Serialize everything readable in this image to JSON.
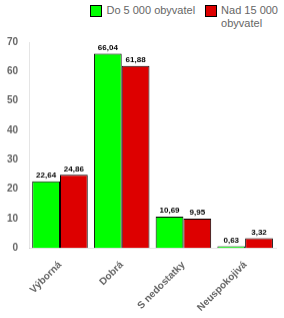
{
  "chart_data": {
    "type": "bar",
    "categories": [
      "Výborná",
      "Dobrá",
      "S nedostatky",
      "Neuspokojivá"
    ],
    "series": [
      {
        "name": "Do 5 000 obyvatel",
        "color": "#00FF00",
        "values": [
          22.64,
          66.04,
          10.69,
          0.63
        ],
        "value_labels": [
          "22,64",
          "66,04",
          "10,69",
          "0,63"
        ]
      },
      {
        "name": "Nad 15 000\nobyvatel",
        "color": "#DD0000",
        "values": [
          24.86,
          61.88,
          9.95,
          3.32
        ],
        "value_labels": [
          "24,86",
          "61,88",
          "9,95",
          "3,32"
        ]
      }
    ],
    "ylim": [
      0,
      70
    ],
    "yticks": [
      0,
      10,
      20,
      30,
      40,
      50,
      60,
      70
    ],
    "grid": false,
    "legend": "upper right",
    "data_labels": true
  }
}
